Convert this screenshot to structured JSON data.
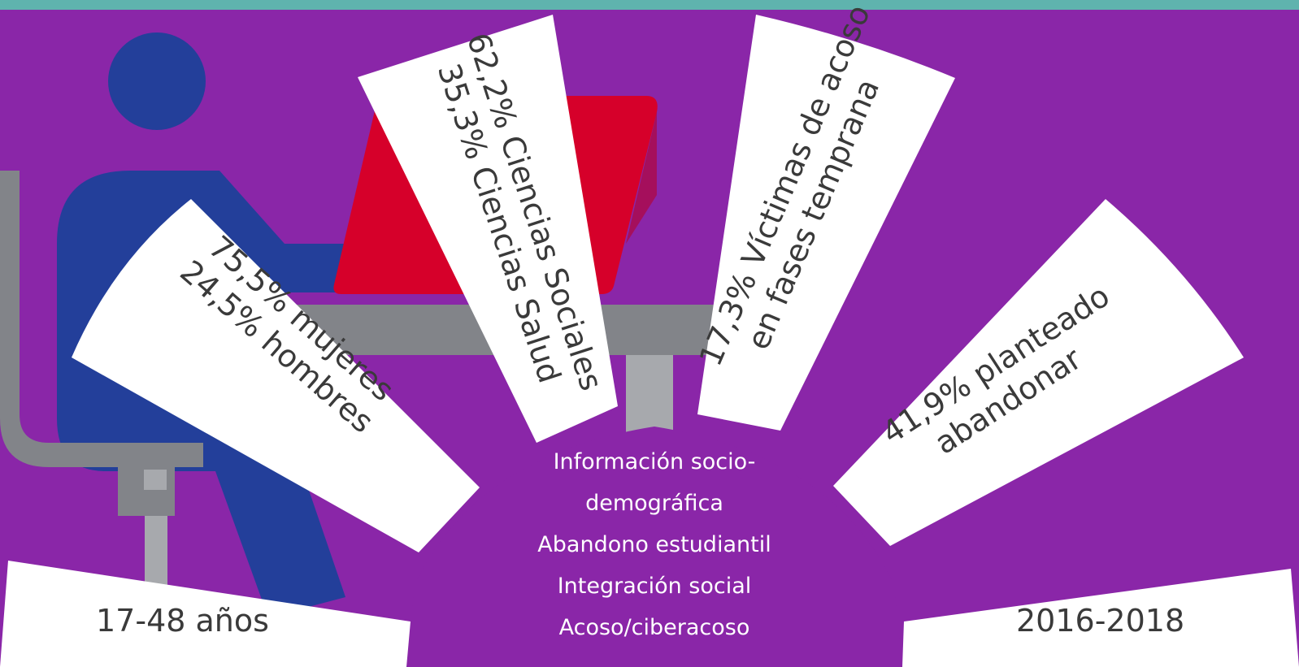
{
  "colors": {
    "background": "#8a26a8",
    "top_band": "#5fb3ae",
    "figure": "#233f9a",
    "laptop": "#d6002a",
    "furniture": "#828489",
    "panel": "#ffffff",
    "text_dark": "#3a3a3a",
    "text_light": "#ffffff"
  },
  "icons": [
    "person-at-desk-illustration",
    "laptop-icon",
    "office-chair-icon"
  ],
  "segments": {
    "gender": {
      "line1": "75,5% mujeres",
      "line2": "24,5% hombres"
    },
    "field": {
      "line1": "62,2% Ciencias Sociales",
      "line2": "35,3% Ciencias Salud"
    },
    "harassment": {
      "line1": "17,3% Víctimas de acoso",
      "line2": "en fases temprana"
    },
    "dropout": {
      "line1": "41,9% planteado",
      "line2": "abandonar"
    }
  },
  "age_label": "17-48 años",
  "years_label": "2016-2018",
  "center_topics": [
    "Información socio-",
    "demográfica",
    "Abandono estudiantil",
    "Integración social",
    "Acoso/ciberacoso"
  ]
}
